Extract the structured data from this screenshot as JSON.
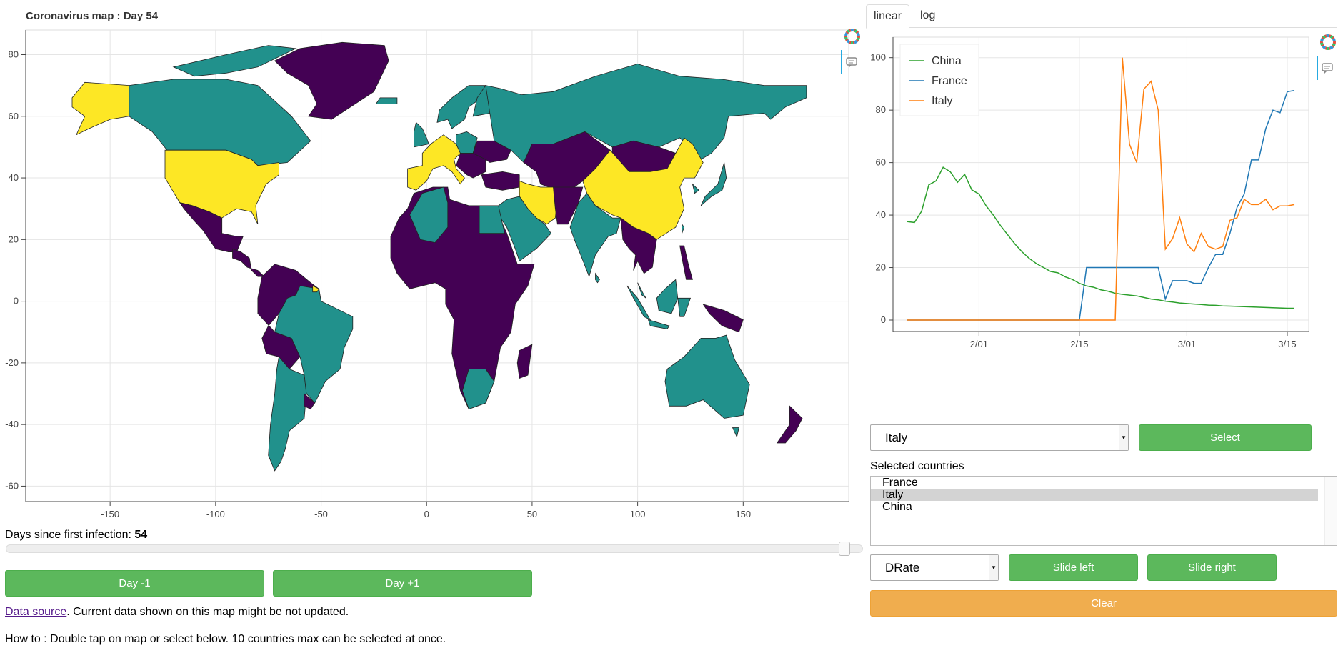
{
  "map": {
    "title": "Coronavirus map : Day 54",
    "xticks": [
      -150,
      -100,
      -50,
      0,
      50,
      100,
      150
    ],
    "yticks": [
      80,
      60,
      40,
      20,
      0,
      -20,
      -40,
      -60
    ],
    "colors": {
      "high": "#fde725",
      "mid": "#21918c",
      "low": "#440154",
      "grid": "#e5e5e5",
      "axis": "#444"
    }
  },
  "tabs": [
    {
      "label": "linear",
      "active": true
    },
    {
      "label": "log",
      "active": false
    }
  ],
  "chart_data": {
    "type": "line",
    "x": [
      "1/22",
      "1/23",
      "1/24",
      "1/25",
      "1/26",
      "1/27",
      "1/28",
      "1/29",
      "1/30",
      "1/31",
      "2/01",
      "2/02",
      "2/03",
      "2/04",
      "2/05",
      "2/06",
      "2/07",
      "2/08",
      "2/09",
      "2/10",
      "2/11",
      "2/12",
      "2/13",
      "2/14",
      "2/15",
      "2/16",
      "2/17",
      "2/18",
      "2/19",
      "2/20",
      "2/21",
      "2/22",
      "2/23",
      "2/24",
      "2/25",
      "2/26",
      "2/27",
      "2/28",
      "2/29",
      "3/01",
      "3/02",
      "3/03",
      "3/04",
      "3/05",
      "3/06",
      "3/07",
      "3/08",
      "3/09",
      "3/10",
      "3/11",
      "3/12",
      "3/13",
      "3/14",
      "3/15",
      "3/16"
    ],
    "xticks": [
      "2/01",
      "2/15",
      "3/01",
      "3/15"
    ],
    "yticks": [
      0,
      20,
      40,
      60,
      80,
      100
    ],
    "ylim": [
      0,
      104
    ],
    "legend": "top-left",
    "grid": true,
    "series": [
      {
        "name": "China",
        "color": "#2ca02c",
        "values": [
          37.5,
          37.2,
          41.5,
          51.5,
          53,
          58.2,
          56.5,
          52.5,
          55.5,
          49.6,
          48,
          43.5,
          40,
          36,
          32.5,
          29,
          26,
          23.5,
          21.5,
          20,
          18.5,
          18,
          16.5,
          15.5,
          14,
          13,
          12.5,
          11.5,
          11,
          10.2,
          9.8,
          9.5,
          9.2,
          8.6,
          8,
          7.7,
          7.2,
          6.9,
          6.5,
          6.3,
          6.1,
          5.9,
          5.7,
          5.6,
          5.4,
          5.3,
          5.2,
          5.1,
          5,
          4.9,
          4.8,
          4.7,
          4.6,
          4.5,
          4.5
        ]
      },
      {
        "name": "France",
        "color": "#1f77b4",
        "values": [
          0,
          0,
          0,
          0,
          0,
          0,
          0,
          0,
          0,
          0,
          0,
          0,
          0,
          0,
          0,
          0,
          0,
          0,
          0,
          0,
          0,
          0,
          0,
          0,
          0,
          20,
          20,
          20,
          20,
          20,
          20,
          20,
          20,
          20,
          20,
          20,
          8,
          15,
          15,
          15,
          14,
          14,
          20,
          25,
          25,
          33,
          43,
          48,
          61,
          61,
          73,
          80,
          79,
          87,
          87.5
        ]
      },
      {
        "name": "Italy",
        "color": "#ff7f0e",
        "values": [
          0,
          0,
          0,
          0,
          0,
          0,
          0,
          0,
          0,
          0,
          0,
          0,
          0,
          0,
          0,
          0,
          0,
          0,
          0,
          0,
          0,
          0,
          0,
          0,
          0,
          0,
          0,
          0,
          0,
          0,
          100,
          67,
          60,
          88,
          91,
          80,
          27,
          31,
          39,
          29,
          26,
          33,
          28,
          27,
          28,
          38,
          39,
          46,
          44,
          44,
          46,
          42,
          43.5,
          43.5,
          44
        ]
      }
    ]
  },
  "country_select": {
    "value": "Italy",
    "button": "Select"
  },
  "selected": {
    "label": "Selected countries",
    "items": [
      "France",
      "Italy",
      "China"
    ],
    "selected_index": 1
  },
  "metric_select": {
    "value": "DRate"
  },
  "buttons": {
    "slide_left": "Slide left",
    "slide_right": "Slide right",
    "clear": "Clear",
    "day_minus": "Day -1",
    "day_plus": "Day +1"
  },
  "slider": {
    "label": "Days since first infection: ",
    "value": "54",
    "fraction": 0.985
  },
  "footer": {
    "link": "Data source",
    "text": ". Current data shown on this map might be not updated.",
    "howto": "How to : Double tap on map or select below. 10 countries max can be selected at once."
  }
}
